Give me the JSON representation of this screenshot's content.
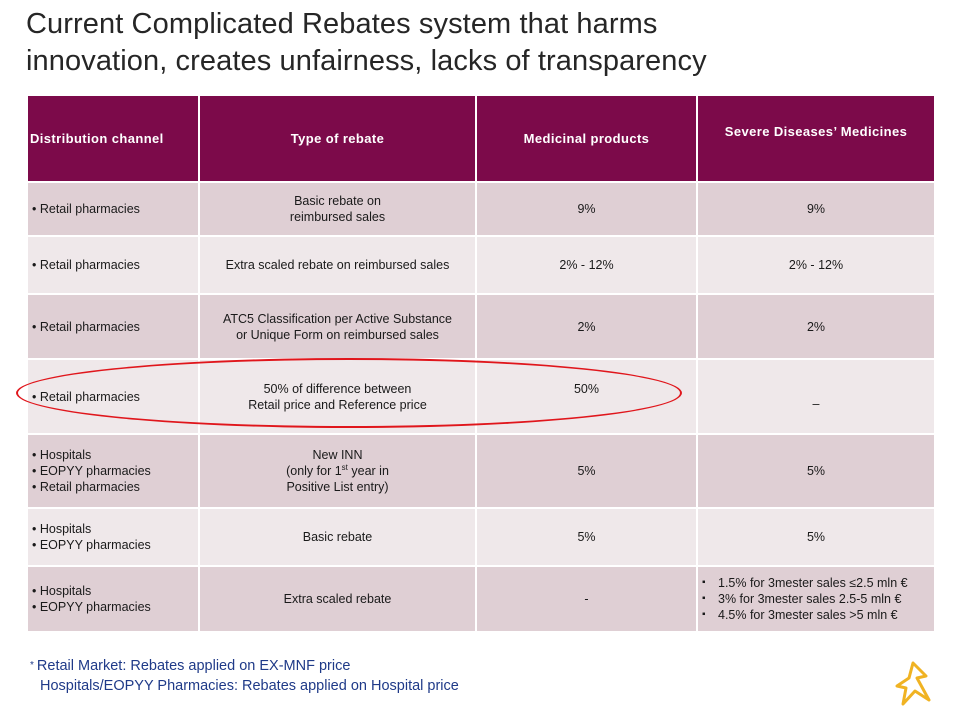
{
  "title": {
    "line1": "Current Complicated Rebates system that harms",
    "line2": "innovation, creates unfairness, lacks of transparency"
  },
  "table": {
    "headers": [
      "Distribution channel",
      "Type of rebate",
      "Medicinal products",
      "Severe Diseases’ Medicines"
    ],
    "rows": [
      {
        "channel": [
          "• Retail pharmacies"
        ],
        "rebate": [
          "Basic rebate on",
          "reimbursed sales"
        ],
        "medicinal": "9%",
        "severe": "9%"
      },
      {
        "channel": [
          "• Retail pharmacies"
        ],
        "rebate": [
          "Extra scaled rebate on reimbursed sales"
        ],
        "medicinal": "2% - 12%",
        "severe": "2% - 12%"
      },
      {
        "channel": [
          "• Retail pharmacies"
        ],
        "rebate": [
          "ATC5 Classification per Active Substance",
          "or Unique Form on reimbursed sales"
        ],
        "medicinal": "2%",
        "severe": "2%"
      },
      {
        "channel": [
          "• Retail pharmacies"
        ],
        "rebate": [
          "50% of difference  between",
          "Retail price and Reference  price"
        ],
        "medicinal": "50%",
        "severe": "–"
      },
      {
        "channel": [
          "• Hospitals",
          "• EOPYY pharmacies",
          "• Retail pharmacies"
        ],
        "rebate_inn": {
          "l1": "New INN",
          "l2a": "(only for 1",
          "l2sup": "st",
          "l2b": " year in",
          "l3": "Positive List entry)"
        },
        "medicinal": "5%",
        "severe": "5%"
      },
      {
        "channel": [
          "• Hospitals",
          "• EOPYY pharmacies"
        ],
        "rebate": [
          "Basic rebate"
        ],
        "medicinal": "5%",
        "severe": "5%"
      },
      {
        "channel": [
          "• Hospitals",
          "• EOPYY pharmacies"
        ],
        "rebate": [
          "Extra scaled rebate"
        ],
        "medicinal": "-",
        "severe_list": [
          "1.5% for 3mester sales ≤2.5 mln €",
          "3% for 3mester sales 2.5-5 mln €",
          "4.5% for 3mester sales >5 mln €"
        ]
      }
    ]
  },
  "footnote": {
    "star": "*",
    "line1": "Retail Market: Rebates applied on EX-MNF price",
    "line2": "Hospitals/EOPYY Pharmacies: Rebates applied on Hospital price"
  },
  "colors": {
    "header_bg": "#7c0a4a",
    "row_odd": "#dfcfd4",
    "row_even": "#efe8ea",
    "highlight": "#e0161c",
    "footnote": "#1f3a88",
    "logo": "#f0b323"
  },
  "logo_icon": "astrazeneca-symbol-icon"
}
